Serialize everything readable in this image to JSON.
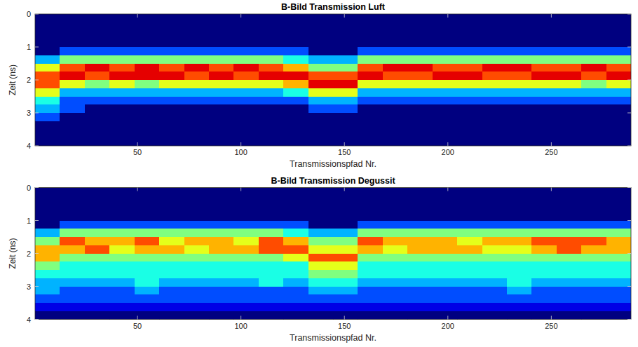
{
  "chart_data": [
    {
      "type": "heatmap",
      "title": "B-Bild Transmission Luft",
      "x_label": "Transmissionspfad Nr.",
      "y_label": "Zeit (ns)",
      "xlim": [
        0.5,
        288.5
      ],
      "ylim": [
        0,
        4
      ],
      "xticks": [
        50,
        100,
        150,
        200,
        250
      ],
      "yticks": [
        0,
        1,
        2,
        3,
        4
      ],
      "grid": false,
      "zlim": [
        0,
        10
      ],
      "x_bins": [
        0.5,
        12.5,
        24.5,
        36.5,
        48.5,
        60.5,
        72.5,
        84.5,
        96.5,
        108.5,
        120.5,
        132.5,
        144.5,
        156.5,
        168.5,
        180.5,
        192.5,
        204.5,
        216.5,
        228.5,
        240.5,
        252.5,
        264.5,
        276.5,
        288.5
      ],
      "y_bins": [
        0,
        0.25,
        0.5,
        0.75,
        1,
        1.25,
        1.5,
        1.75,
        2,
        2.25,
        2.5,
        2.75,
        3,
        3.25,
        3.5,
        3.75,
        4
      ],
      "z": [
        [
          0,
          0,
          0,
          0,
          0,
          0,
          0,
          0,
          0,
          0,
          0,
          0,
          0,
          0,
          0,
          0,
          0,
          0,
          0,
          0,
          0,
          0,
          0,
          0
        ],
        [
          0,
          0,
          0,
          0,
          0,
          0,
          0,
          0,
          0,
          0,
          0,
          0,
          0,
          0,
          0,
          0,
          0,
          0,
          0,
          0,
          0,
          0,
          0,
          0
        ],
        [
          0,
          0,
          0,
          0,
          0,
          0,
          0,
          0,
          0,
          0,
          0,
          0,
          0,
          0,
          0,
          0,
          0,
          0,
          0,
          0,
          0,
          0,
          0,
          0
        ],
        [
          0,
          0,
          0,
          0,
          0,
          0,
          0,
          0,
          0,
          0,
          0,
          0,
          0,
          0,
          0,
          0,
          0,
          0,
          0,
          0,
          0,
          0,
          0,
          0
        ],
        [
          0,
          2,
          2,
          2,
          2,
          2,
          2,
          2,
          2,
          2,
          2,
          0,
          0,
          2,
          2,
          2,
          2,
          2,
          2,
          2,
          2,
          2,
          2,
          2
        ],
        [
          3,
          5,
          5,
          5,
          5,
          5,
          5,
          5,
          5,
          5,
          4,
          3,
          3,
          5,
          5,
          5,
          5,
          5,
          5,
          5,
          5,
          5,
          5,
          5
        ],
        [
          6,
          8,
          9,
          8,
          9,
          8,
          9,
          8,
          9,
          8,
          7,
          5,
          5,
          8,
          9,
          9,
          8,
          8,
          9,
          9,
          8,
          8,
          9,
          8
        ],
        [
          8,
          9,
          8,
          9,
          9,
          9,
          8,
          9,
          8,
          9,
          9,
          8,
          8,
          9,
          8,
          8,
          9,
          9,
          8,
          8,
          9,
          9,
          8,
          9
        ],
        [
          8,
          6,
          5,
          6,
          5,
          6,
          6,
          6,
          6,
          6,
          7,
          9,
          9,
          6,
          6,
          6,
          6,
          6,
          6,
          6,
          6,
          6,
          5,
          6
        ],
        [
          6,
          3,
          3,
          3,
          3,
          3,
          3,
          3,
          3,
          3,
          4,
          6,
          6,
          3,
          3,
          3,
          3,
          3,
          3,
          3,
          3,
          3,
          3,
          3
        ],
        [
          4,
          2,
          2,
          2,
          2,
          2,
          2,
          2,
          2,
          2,
          2,
          3,
          3,
          2,
          2,
          2,
          2,
          2,
          2,
          2,
          2,
          2,
          2,
          2
        ],
        [
          3,
          2,
          0,
          0,
          0,
          0,
          0,
          0,
          0,
          0,
          0,
          2,
          2,
          0,
          0,
          0,
          0,
          0,
          0,
          0,
          0,
          0,
          0,
          0
        ],
        [
          2,
          0,
          0,
          0,
          0,
          0,
          0,
          0,
          0,
          0,
          0,
          0,
          0,
          0,
          0,
          0,
          0,
          0,
          0,
          0,
          0,
          0,
          0,
          0
        ],
        [
          0,
          0,
          0,
          0,
          0,
          0,
          0,
          0,
          0,
          0,
          0,
          0,
          0,
          0,
          0,
          0,
          0,
          0,
          0,
          0,
          0,
          0,
          0,
          0
        ],
        [
          0,
          0,
          0,
          0,
          0,
          0,
          0,
          0,
          0,
          0,
          0,
          0,
          0,
          0,
          0,
          0,
          0,
          0,
          0,
          0,
          0,
          0,
          0,
          0
        ],
        [
          0,
          0,
          0,
          0,
          0,
          0,
          0,
          0,
          0,
          0,
          0,
          0,
          0,
          0,
          0,
          0,
          0,
          0,
          0,
          0,
          0,
          0,
          0,
          0
        ]
      ]
    },
    {
      "type": "heatmap",
      "title": "B-Bild Transmission Degussit",
      "x_label": "Transmissionspfad Nr.",
      "y_label": "Zeit (ns)",
      "xlim": [
        0.5,
        288.5
      ],
      "ylim": [
        0,
        4
      ],
      "xticks": [
        50,
        100,
        150,
        200,
        250
      ],
      "yticks": [
        0,
        1,
        2,
        3,
        4
      ],
      "grid": false,
      "zlim": [
        0,
        10
      ],
      "x_bins": [
        0.5,
        12.5,
        24.5,
        36.5,
        48.5,
        60.5,
        72.5,
        84.5,
        96.5,
        108.5,
        120.5,
        132.5,
        144.5,
        156.5,
        168.5,
        180.5,
        192.5,
        204.5,
        216.5,
        228.5,
        240.5,
        252.5,
        264.5,
        276.5,
        288.5
      ],
      "y_bins": [
        0,
        0.25,
        0.5,
        0.75,
        1,
        1.25,
        1.5,
        1.75,
        2,
        2.25,
        2.5,
        2.75,
        3,
        3.25,
        3.5,
        3.75,
        4
      ],
      "z": [
        [
          0,
          0,
          0,
          0,
          0,
          0,
          0,
          0,
          0,
          0,
          0,
          0,
          0,
          0,
          0,
          0,
          0,
          0,
          0,
          0,
          0,
          0,
          0,
          0
        ],
        [
          0,
          0,
          0,
          0,
          0,
          0,
          0,
          0,
          0,
          0,
          0,
          0,
          0,
          0,
          0,
          0,
          0,
          0,
          0,
          0,
          0,
          0,
          0,
          0
        ],
        [
          0,
          0,
          0,
          0,
          0,
          0,
          0,
          0,
          0,
          0,
          0,
          0,
          0,
          0,
          0,
          0,
          0,
          0,
          0,
          0,
          0,
          0,
          0,
          0
        ],
        [
          0,
          0,
          0,
          0,
          0,
          0,
          0,
          0,
          0,
          0,
          0,
          0,
          0,
          0,
          0,
          0,
          0,
          0,
          0,
          0,
          0,
          0,
          0,
          0
        ],
        [
          0,
          2,
          2,
          2,
          2,
          2,
          2,
          2,
          2,
          2,
          2,
          0,
          0,
          2,
          2,
          2,
          2,
          2,
          2,
          2,
          2,
          2,
          2,
          2
        ],
        [
          3,
          5,
          5,
          5,
          5,
          5,
          5,
          5,
          5,
          5,
          4,
          3,
          3,
          5,
          5,
          5,
          5,
          5,
          5,
          5,
          5,
          5,
          5,
          5
        ],
        [
          5,
          8,
          7,
          7,
          8,
          6,
          7,
          7,
          6,
          8,
          7,
          5,
          5,
          8,
          7,
          7,
          7,
          6,
          7,
          7,
          8,
          8,
          8,
          7
        ],
        [
          7,
          7,
          8,
          6,
          7,
          7,
          6,
          7,
          7,
          8,
          8,
          6,
          6,
          7,
          6,
          7,
          7,
          7,
          6,
          6,
          7,
          8,
          7,
          7
        ],
        [
          7,
          5,
          5,
          5,
          5,
          5,
          5,
          5,
          5,
          5,
          6,
          8,
          8,
          5,
          5,
          5,
          5,
          5,
          5,
          5,
          5,
          5,
          5,
          5
        ],
        [
          5,
          4,
          4,
          4,
          4,
          4,
          4,
          4,
          4,
          4,
          4,
          6,
          6,
          4,
          4,
          4,
          4,
          4,
          4,
          4,
          4,
          4,
          4,
          4
        ],
        [
          4,
          4,
          4,
          4,
          4,
          4,
          4,
          4,
          4,
          4,
          4,
          5,
          5,
          4,
          4,
          4,
          4,
          4,
          4,
          4,
          4,
          4,
          4,
          4
        ],
        [
          3,
          3,
          3,
          3,
          4,
          3,
          3,
          3,
          3,
          4,
          3,
          4,
          4,
          3,
          3,
          3,
          3,
          3,
          3,
          4,
          3,
          3,
          3,
          3
        ],
        [
          3,
          2,
          2,
          2,
          3,
          2,
          2,
          2,
          2,
          2,
          2,
          3,
          3,
          2,
          2,
          2,
          2,
          2,
          2,
          3,
          2,
          2,
          2,
          2
        ],
        [
          2,
          2,
          2,
          2,
          2,
          2,
          2,
          2,
          2,
          2,
          2,
          2,
          2,
          2,
          2,
          2,
          2,
          2,
          2,
          2,
          2,
          2,
          2,
          2
        ],
        [
          1,
          1,
          1,
          1,
          1,
          1,
          1,
          1,
          1,
          1,
          1,
          1,
          1,
          1,
          1,
          1,
          1,
          1,
          1,
          1,
          1,
          1,
          1,
          1
        ],
        [
          0,
          0,
          0,
          0,
          0,
          0,
          0,
          0,
          0,
          0,
          0,
          0,
          0,
          0,
          0,
          0,
          0,
          0,
          0,
          0,
          0,
          0,
          0,
          0
        ]
      ]
    }
  ]
}
